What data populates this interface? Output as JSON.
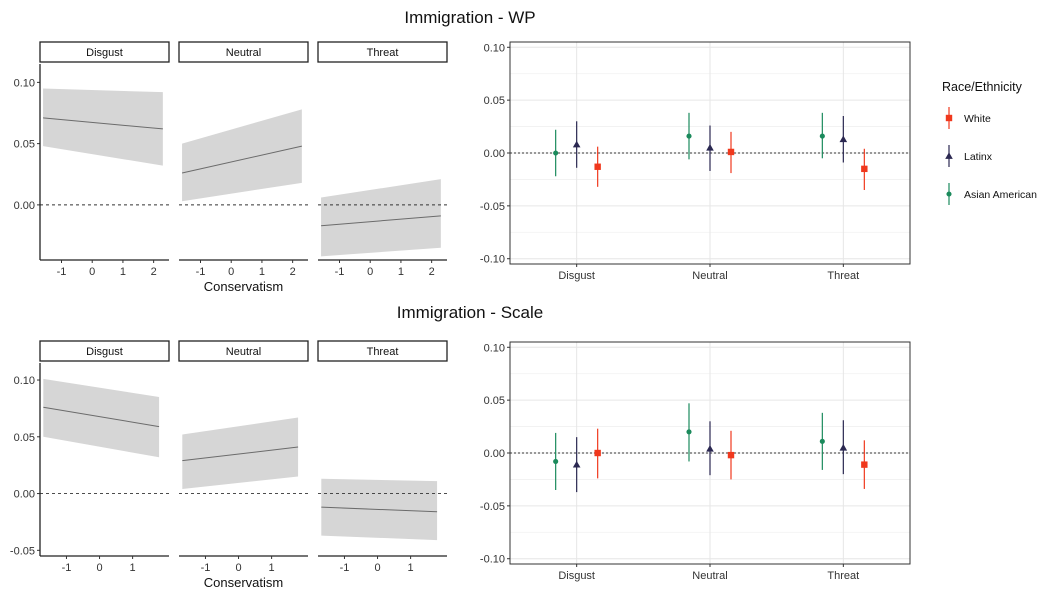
{
  "figure_titles": [
    "Immigration - WP",
    "Immigration - Scale"
  ],
  "legend": {
    "title": "Race/Ethnicity",
    "entries": [
      {
        "label": "White",
        "color": "#f0381d",
        "shape": "square"
      },
      {
        "label": "Latinx",
        "color": "#2b2851",
        "shape": "triangle"
      },
      {
        "label": "Asian American",
        "color": "#1b8a5c",
        "shape": "circle"
      }
    ]
  },
  "chart_data": [
    {
      "type": "line",
      "title": "Immigration - WP",
      "xlabel": "Conservatism",
      "ylabel": "",
      "facets": [
        "Disgust",
        "Neutral",
        "Threat"
      ],
      "ylim": [
        -0.045,
        0.115
      ],
      "yticks": [
        0.0,
        0.05,
        0.1
      ],
      "ytick_labels": [
        "0.00",
        "0.05",
        "0.10"
      ],
      "xlim": [
        -1.7,
        2.5
      ],
      "xticks": [
        -1,
        0,
        1,
        2
      ],
      "xtick_labels": [
        "-1",
        "0",
        "1",
        "2"
      ],
      "x": [
        -1.6,
        2.3
      ],
      "reference_line": 0,
      "series": [
        {
          "facet": "Disgust",
          "y": [
            0.071,
            0.062
          ],
          "lower": [
            0.048,
            0.032
          ],
          "upper": [
            0.095,
            0.092
          ]
        },
        {
          "facet": "Neutral",
          "y": [
            0.026,
            0.048
          ],
          "lower": [
            0.003,
            0.018
          ],
          "upper": [
            0.05,
            0.078
          ]
        },
        {
          "facet": "Threat",
          "y": [
            -0.017,
            -0.009
          ],
          "lower": [
            -0.042,
            -0.035
          ],
          "upper": [
            0.006,
            0.021
          ]
        }
      ]
    },
    {
      "type": "scatter",
      "title": "Immigration - WP",
      "categories": [
        "Disgust",
        "Neutral",
        "Threat"
      ],
      "ylim": [
        -0.105,
        0.105
      ],
      "yticks": [
        -0.1,
        -0.05,
        0.0,
        0.05,
        0.1
      ],
      "ytick_labels": [
        "-0.10",
        "-0.05",
        "0.00",
        "0.05",
        "0.10"
      ],
      "reference_line": 0,
      "series": [
        {
          "name": "Asian American",
          "values": [
            0.0,
            0.016,
            0.016
          ],
          "lower": [
            -0.022,
            -0.006,
            -0.005
          ],
          "upper": [
            0.022,
            0.038,
            0.038
          ]
        },
        {
          "name": "Latinx",
          "values": [
            0.008,
            0.005,
            0.013
          ],
          "lower": [
            -0.014,
            -0.017,
            -0.009
          ],
          "upper": [
            0.03,
            0.026,
            0.035
          ]
        },
        {
          "name": "White",
          "values": [
            -0.013,
            0.001,
            -0.015
          ],
          "lower": [
            -0.032,
            -0.019,
            -0.035
          ],
          "upper": [
            0.006,
            0.02,
            0.004
          ]
        }
      ]
    },
    {
      "type": "line",
      "title": "Immigration - Scale",
      "xlabel": "Conservatism",
      "ylabel": "",
      "facets": [
        "Disgust",
        "Neutral",
        "Threat"
      ],
      "ylim": [
        -0.055,
        0.115
      ],
      "yticks": [
        -0.05,
        0.0,
        0.05,
        0.1
      ],
      "ytick_labels": [
        "-0.05",
        "0.00",
        "0.05",
        "0.10"
      ],
      "xlim": [
        -1.8,
        2.1
      ],
      "xticks": [
        -1,
        0,
        1
      ],
      "xtick_labels": [
        "-1",
        "0",
        "1"
      ],
      "x": [
        -1.7,
        1.8
      ],
      "reference_line": 0,
      "series": [
        {
          "facet": "Disgust",
          "y": [
            0.076,
            0.059
          ],
          "lower": [
            0.05,
            0.032
          ],
          "upper": [
            0.101,
            0.085
          ]
        },
        {
          "facet": "Neutral",
          "y": [
            0.029,
            0.041
          ],
          "lower": [
            0.004,
            0.015
          ],
          "upper": [
            0.052,
            0.067
          ]
        },
        {
          "facet": "Threat",
          "y": [
            -0.012,
            -0.016
          ],
          "lower": [
            -0.037,
            -0.041
          ],
          "upper": [
            0.013,
            0.011
          ]
        }
      ]
    },
    {
      "type": "scatter",
      "title": "Immigration - Scale",
      "categories": [
        "Disgust",
        "Neutral",
        "Threat"
      ],
      "ylim": [
        -0.105,
        0.105
      ],
      "yticks": [
        -0.1,
        -0.05,
        0.0,
        0.05,
        0.1
      ],
      "ytick_labels": [
        "-0.10",
        "-0.05",
        "0.00",
        "0.05",
        "0.10"
      ],
      "reference_line": 0,
      "series": [
        {
          "name": "Asian American",
          "values": [
            -0.008,
            0.02,
            0.011
          ],
          "lower": [
            -0.035,
            -0.008,
            -0.016
          ],
          "upper": [
            0.019,
            0.047,
            0.038
          ]
        },
        {
          "name": "Latinx",
          "values": [
            -0.011,
            0.004,
            0.005
          ],
          "lower": [
            -0.037,
            -0.021,
            -0.02
          ],
          "upper": [
            0.015,
            0.03,
            0.031
          ]
        },
        {
          "name": "White",
          "values": [
            0.0,
            -0.002,
            -0.011
          ],
          "lower": [
            -0.024,
            -0.025,
            -0.034
          ],
          "upper": [
            0.023,
            0.021,
            0.012
          ]
        }
      ]
    }
  ]
}
